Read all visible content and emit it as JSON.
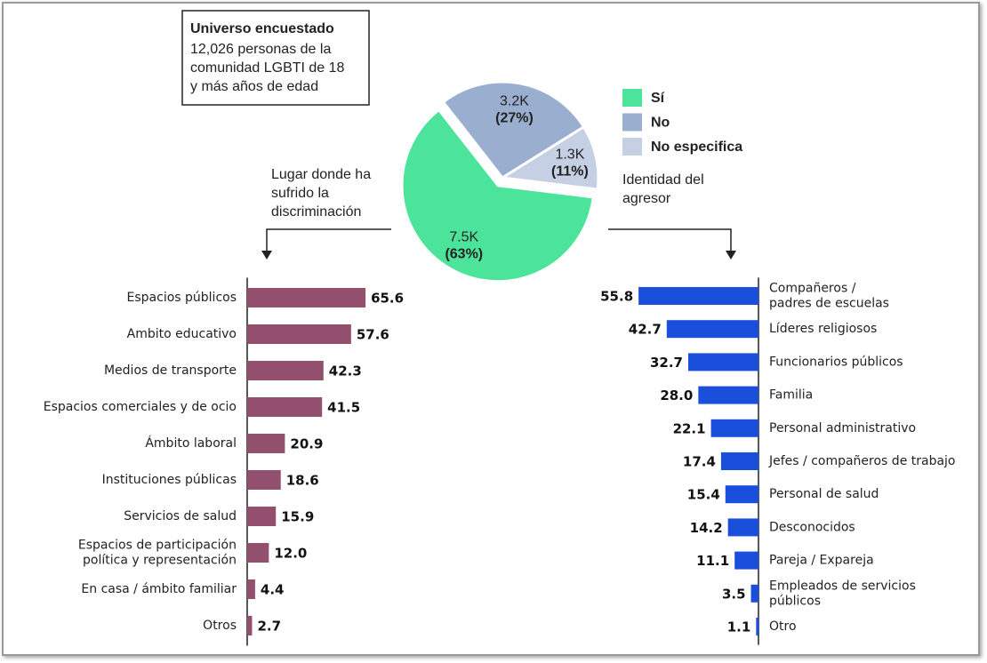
{
  "info_box": {
    "title": "Universo encuestado",
    "text": "12,026 personas de la\ncomunidad LGBTI de 18\ny más años de edad"
  },
  "chart_data": [
    {
      "type": "pie",
      "categories": [
        "Sí",
        "No",
        "No especifica"
      ],
      "values": [
        7500,
        3200,
        1300
      ],
      "value_labels": [
        "7.5K",
        "3.2K",
        "1.3K"
      ],
      "percentages": [
        63,
        27,
        11
      ],
      "percentage_labels": [
        "(63%)",
        "(27%)",
        "(11%)"
      ],
      "colors": [
        "#4ce39a",
        "#9aaed0",
        "#c6d0e4"
      ],
      "legend": "right"
    },
    {
      "type": "bar",
      "title": "Lugar donde ha\nsufrido la\ndiscriminación",
      "orientation": "horizontal",
      "direction": "right",
      "color": "#92506e",
      "xlim": [
        0,
        70
      ],
      "categories": [
        "Espacios públicos",
        "Ambito educativo",
        "Medios de transporte",
        "Espacios comerciales y de ocio",
        "Ámbito laboral",
        "Instituciones públicas",
        "Servicios de salud",
        "Espacios de participación\npolítica y representación",
        "En casa / ámbito familiar",
        "Otros"
      ],
      "values": [
        65.6,
        57.6,
        42.3,
        41.5,
        20.9,
        18.6,
        15.9,
        12.0,
        4.4,
        2.7
      ],
      "value_labels": [
        "65.6",
        "57.6",
        "42.3",
        "41.5",
        "20.9",
        "18.6",
        "15.9",
        "12.0",
        "4.4",
        "2.7"
      ]
    },
    {
      "type": "bar",
      "title": "Identidad del\nagresor",
      "orientation": "horizontal",
      "direction": "left",
      "color": "#1a4fdc",
      "xlim": [
        0,
        60
      ],
      "categories": [
        "Compañeros /\npadres de escuelas",
        "Líderes religiosos",
        "Funcionarios públicos",
        "Familia",
        "Personal administrativo",
        "Jefes / compañeros de trabajo",
        "Personal de salud",
        "Desconocidos",
        "Pareja / Expareja",
        "Empleados de servicios\npúblicos",
        "Otro"
      ],
      "values": [
        55.8,
        42.7,
        32.7,
        28.0,
        22.1,
        17.4,
        15.4,
        14.2,
        11.1,
        3.5,
        1.1
      ],
      "value_labels": [
        "55.8",
        "42.7",
        "32.7",
        "28.0",
        "22.1",
        "17.4",
        "15.4",
        "14.2",
        "11.1",
        "3.5",
        "1.1"
      ]
    }
  ]
}
